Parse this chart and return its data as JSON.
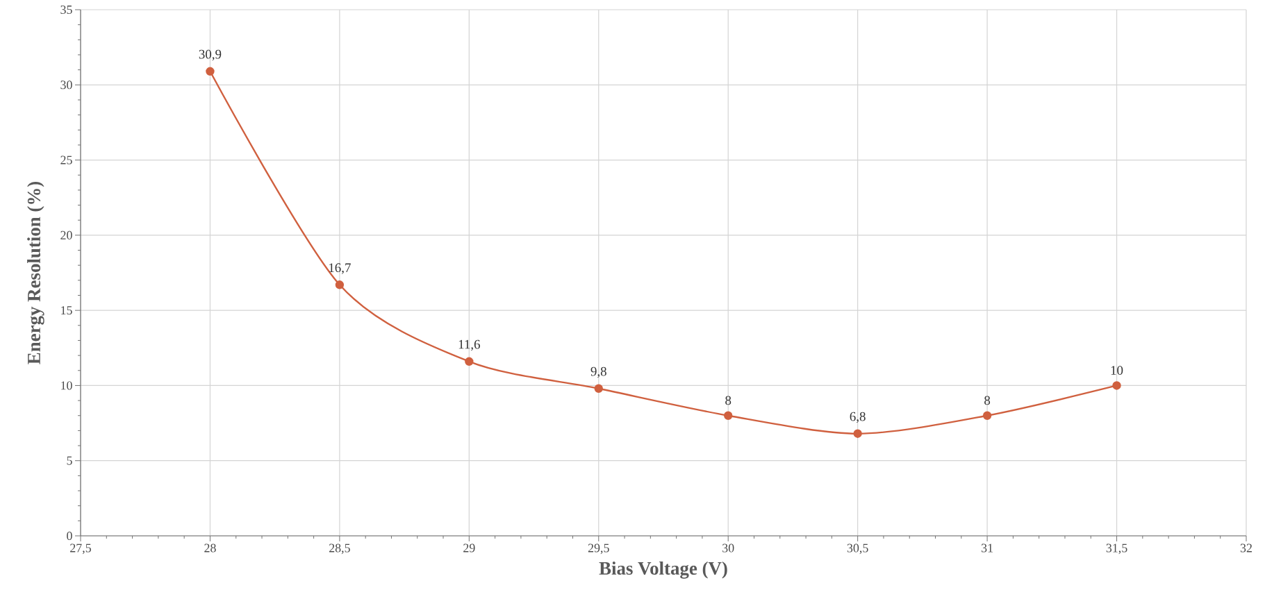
{
  "chart_data": {
    "type": "line",
    "xlabel": "Bias Voltage (V)",
    "ylabel": "Energy Resolution (%)",
    "x": [
      28,
      28.5,
      29,
      29.5,
      30,
      30.5,
      31,
      31.5
    ],
    "series": [
      {
        "color": "#d0603f",
        "values": [
          30.9,
          16.7,
          11.6,
          9.8,
          8,
          6.8,
          8,
          10
        ],
        "value_labels": [
          "30,9",
          "16,7",
          "11,6",
          "9,8",
          "8",
          "6,8",
          "8",
          "10"
        ]
      }
    ],
    "xlim": [
      27.5,
      32
    ],
    "xticks": [
      {
        "value": 27.5,
        "label": "27,5"
      },
      28,
      {
        "value": 28.5,
        "label": "28,5"
      },
      29,
      {
        "value": 29.5,
        "label": "29,5"
      },
      30,
      {
        "value": 30.5,
        "label": "30,5"
      },
      31,
      {
        "value": 31.5,
        "label": "31,5"
      },
      32
    ],
    "ylim": [
      0,
      35
    ],
    "yticks": [
      0,
      5,
      10,
      15,
      20,
      25,
      30,
      35
    ],
    "grid": true,
    "marker": "circle",
    "line_style": "solid"
  }
}
